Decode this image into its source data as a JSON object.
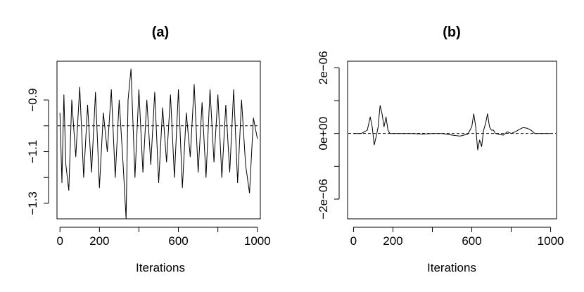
{
  "chart_data": [
    {
      "type": "line",
      "title": "(a)",
      "xlabel": "Iterations",
      "ylabel": "",
      "xlim": [
        -15,
        1015
      ],
      "ylim": [
        -1.36,
        -0.75
      ],
      "x_ticks": [
        0,
        200,
        600,
        1000
      ],
      "x_tick_marks": [
        0,
        200,
        400,
        600,
        800,
        1000
      ],
      "y_ticks": [
        -1.3,
        -1.1,
        -0.9
      ],
      "y_tick_marks": [
        -1.3,
        -1.2,
        -1.1,
        -1.0,
        -0.9
      ],
      "reference_line": -1.0,
      "grid": false,
      "series": [
        {
          "description_x": "iteration",
          "x": [
            0,
            10,
            20,
            30,
            45,
            60,
            80,
            100,
            120,
            140,
            160,
            180,
            200,
            220,
            240,
            260,
            280,
            300,
            320,
            335,
            345,
            360,
            380,
            400,
            420,
            440,
            460,
            480,
            500,
            520,
            540,
            560,
            580,
            600,
            620,
            640,
            660,
            680,
            700,
            720,
            740,
            760,
            780,
            800,
            820,
            840,
            860,
            880,
            900,
            920,
            940,
            960,
            980,
            1000
          ],
          "y": [
            -0.95,
            -1.22,
            -0.88,
            -1.15,
            -1.25,
            -0.9,
            -1.12,
            -0.85,
            -1.2,
            -0.92,
            -1.18,
            -0.87,
            -1.24,
            -0.95,
            -1.1,
            -0.86,
            -1.2,
            -0.9,
            -1.15,
            -1.36,
            -0.9,
            -0.78,
            -1.2,
            -0.86,
            -1.18,
            -0.9,
            -1.15,
            -0.87,
            -1.22,
            -0.93,
            -1.14,
            -0.88,
            -1.2,
            -0.86,
            -1.24,
            -0.95,
            -1.12,
            -0.84,
            -1.18,
            -0.91,
            -1.2,
            -0.86,
            -1.14,
            -0.88,
            -1.2,
            -0.92,
            -1.18,
            -0.86,
            -1.22,
            -0.9,
            -1.15,
            -1.26,
            -0.97,
            -1.05
          ]
        }
      ]
    },
    {
      "type": "line",
      "title": "(b)",
      "xlabel": "Iterations",
      "ylabel": "",
      "xlim": [
        -30,
        1030
      ],
      "ylim": [
        -2.6e-06,
        2.2e-06
      ],
      "x_ticks": [
        0,
        200,
        600,
        1000
      ],
      "x_tick_marks": [
        0,
        200,
        400,
        600,
        800,
        1000
      ],
      "y_ticks": [
        -2e-06,
        0,
        2e-06
      ],
      "y_tick_labels": [
        "−2e−06",
        "0e+00",
        "2e−06"
      ],
      "y_tick_marks": [
        -2e-06,
        -1e-06,
        0,
        1e-06,
        2e-06
      ],
      "reference_line": 0,
      "grid": false,
      "series": [
        {
          "x": [
            0,
            40,
            70,
            85,
            95,
            105,
            115,
            125,
            135,
            145,
            155,
            165,
            175,
            185,
            200,
            250,
            300,
            350,
            400,
            450,
            500,
            540,
            580,
            600,
            610,
            620,
            630,
            640,
            650,
            660,
            670,
            680,
            690,
            700,
            710,
            720,
            740,
            760,
            780,
            800,
            820,
            840,
            860,
            880,
            900,
            920,
            1000
          ],
          "y": [
            0,
            0,
            1e-07,
            5e-07,
            2e-07,
            -3.5e-07,
            -1e-07,
            2e-07,
            8.5e-07,
            6e-07,
            2e-07,
            5e-07,
            1e-07,
            0,
            0,
            0,
            0,
            -2e-08,
            0,
            0,
            -5e-08,
            -8e-08,
            -2e-08,
            2e-07,
            6e-07,
            2e-07,
            -5e-07,
            -2e-07,
            -4e-07,
            1e-07,
            3e-07,
            6e-07,
            2e-07,
            1e-07,
            1e-07,
            0,
            -3e-08,
            -5e-08,
            5e-08,
            0,
            5e-08,
            1.2e-07,
            1.8e-07,
            1.6e-07,
            1e-07,
            0,
            0
          ]
        }
      ]
    }
  ]
}
